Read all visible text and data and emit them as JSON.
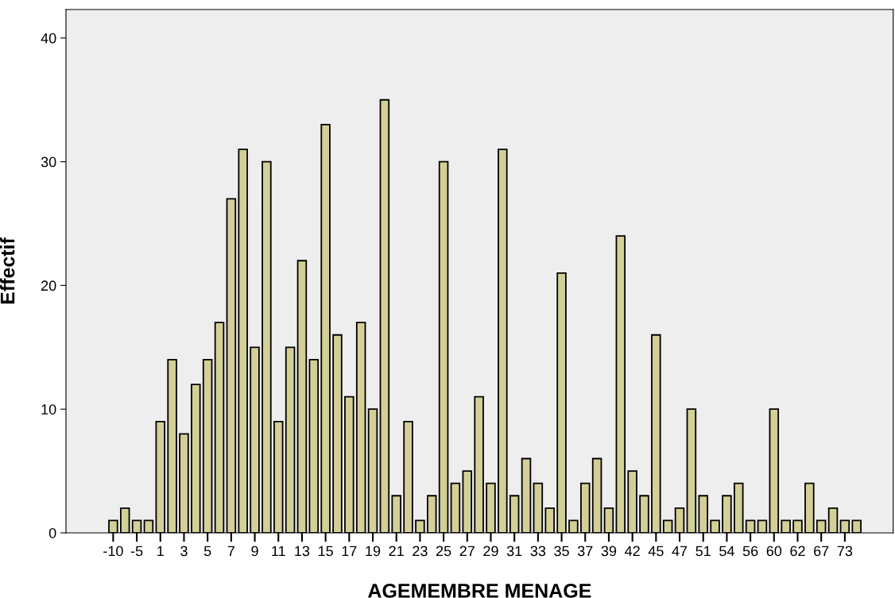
{
  "chart_data": {
    "type": "bar",
    "xlabel": "AGEMEMBRE MENAGE",
    "ylabel": "Effectif",
    "categories": [
      "-10",
      null,
      "-5",
      null,
      "1",
      null,
      "3",
      null,
      "5",
      null,
      "7",
      null,
      "9",
      null,
      "11",
      null,
      "13",
      null,
      "15",
      null,
      "17",
      null,
      "19",
      null,
      "21",
      null,
      "23",
      null,
      "25",
      null,
      "27",
      null,
      "29",
      null,
      "31",
      null,
      "33",
      null,
      "35",
      null,
      "37",
      null,
      "39",
      null,
      "42",
      null,
      "45",
      null,
      "47",
      null,
      "51",
      null,
      "54",
      null,
      "56",
      null,
      "60",
      null,
      "62",
      null,
      "67",
      null,
      "73",
      null
    ],
    "values": [
      1,
      2,
      1,
      1,
      9,
      14,
      8,
      12,
      14,
      17,
      27,
      31,
      15,
      30,
      9,
      15,
      22,
      14,
      33,
      16,
      11,
      17,
      10,
      35,
      3,
      9,
      1,
      3,
      30,
      4,
      5,
      11,
      4,
      31,
      3,
      6,
      4,
      2,
      21,
      1,
      4,
      6,
      2,
      24,
      5,
      3,
      16,
      1,
      2,
      10,
      3,
      1,
      3,
      4,
      1,
      1,
      10,
      1,
      1,
      4,
      1,
      2,
      1,
      1
    ],
    "color": "#d3cf97",
    "ylim": [
      0,
      42.3
    ],
    "yticks": [
      0,
      10,
      20,
      30,
      40
    ],
    "grid": false
  }
}
